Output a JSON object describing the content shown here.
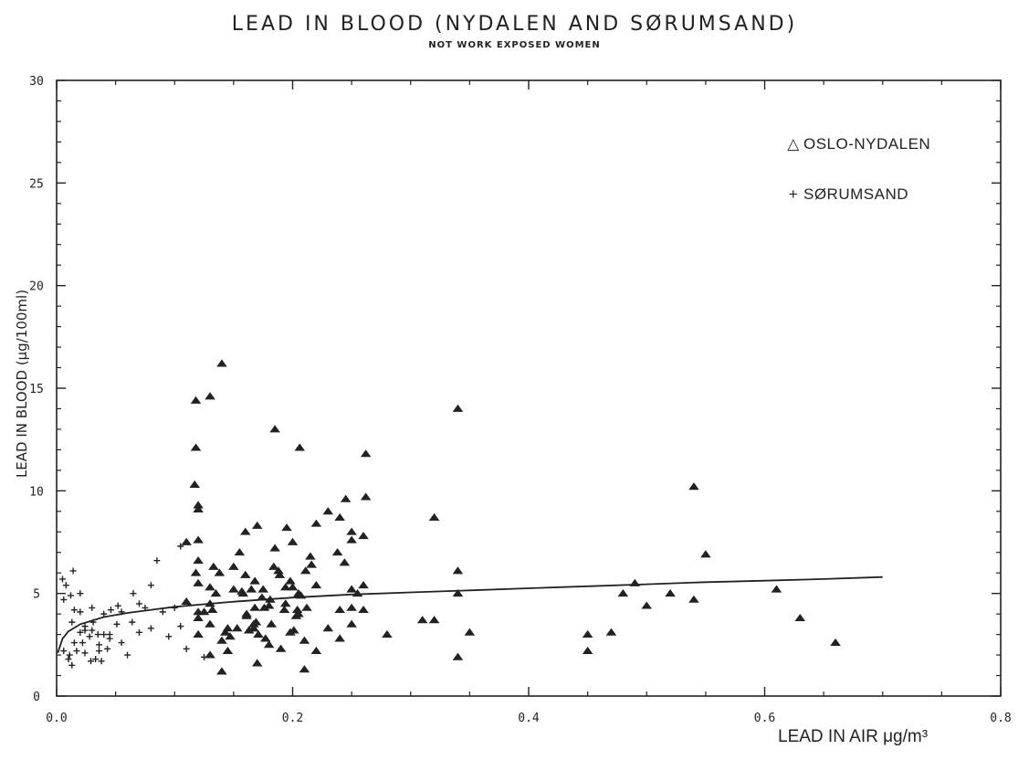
{
  "chart_data": {
    "type": "scatter",
    "title": "LEAD IN BLOOD (NYDALEN AND SØRUMSAND)",
    "subtitle": "NOT WORK EXPOSED WOMEN",
    "xlabel": "LEAD IN AIR μg/m³",
    "ylabel": "LEAD IN BLOOD (μg/100ml)",
    "xlim": [
      0,
      0.8
    ],
    "ylim": [
      0,
      30
    ],
    "xticks": [
      "0.0",
      "0.2",
      "0.4",
      "0.6",
      "0.8"
    ],
    "yticks": [
      "0",
      "5",
      "10",
      "15",
      "20",
      "25",
      "30"
    ],
    "grid": false,
    "legend_position": "top-right",
    "series": [
      {
        "name": "OSLO-NYDALEN",
        "marker": "triangle",
        "points": [
          [
            0.174,
            4.8
          ],
          [
            0.18,
            4.4
          ],
          [
            0.194,
            5.3
          ],
          [
            0.138,
            6.0
          ],
          [
            0.176,
            4.3
          ],
          [
            0.15,
            6.3
          ],
          [
            0.158,
            5.0
          ],
          [
            0.203,
            3.9
          ],
          [
            0.212,
            4.3
          ],
          [
            0.145,
            2.2
          ],
          [
            0.161,
            3.9
          ],
          [
            0.216,
            6.4
          ],
          [
            0.145,
            3.3
          ],
          [
            0.198,
            3.1
          ],
          [
            0.165,
            5.2
          ],
          [
            0.21,
            2.7
          ],
          [
            0.189,
            5.9
          ],
          [
            0.205,
            4.0
          ],
          [
            0.153,
            3.3
          ],
          [
            0.188,
            6.1
          ],
          [
            0.147,
            2.9
          ],
          [
            0.168,
            4.3
          ],
          [
            0.198,
            5.6
          ],
          [
            0.184,
            6.3
          ],
          [
            0.211,
            6.1
          ],
          [
            0.205,
            5.0
          ],
          [
            0.167,
            3.3
          ],
          [
            0.13,
            4.5
          ],
          [
            0.204,
            4.2
          ],
          [
            0.201,
            3.2
          ],
          [
            0.167,
            3.5
          ],
          [
            0.16,
            5.9
          ],
          [
            0.168,
            5.6
          ],
          [
            0.194,
            4.5
          ],
          [
            0.175,
            5.2
          ],
          [
            0.177,
            2.8
          ],
          [
            0.207,
            4.9
          ],
          [
            0.22,
            5.4
          ],
          [
            0.163,
            3.2
          ],
          [
            0.15,
            5.2
          ],
          [
            0.2,
            5.3
          ],
          [
            0.167,
            3.3
          ],
          [
            0.169,
            3.6
          ],
          [
            0.157,
            5.1
          ],
          [
            0.181,
            4.7
          ],
          [
            0.143,
            3.1
          ],
          [
            0.193,
            4.2
          ],
          [
            0.182,
            3.5
          ],
          [
            0.171,
            3.0
          ],
          [
            0.161,
            4.0
          ],
          [
            0.118,
            6.0
          ],
          [
            0.133,
            6.3
          ],
          [
            0.155,
            7.0
          ],
          [
            0.185,
            7.2
          ],
          [
            0.215,
            6.8
          ],
          [
            0.238,
            7.0
          ],
          [
            0.244,
            6.5
          ],
          [
            0.2,
            7.5
          ],
          [
            0.195,
            8.2
          ],
          [
            0.22,
            8.4
          ],
          [
            0.17,
            8.3
          ],
          [
            0.16,
            8.0
          ],
          [
            0.25,
            7.6
          ],
          [
            0.25,
            8.0
          ],
          [
            0.26,
            7.8
          ],
          [
            0.23,
            9.0
          ],
          [
            0.24,
            8.7
          ],
          [
            0.245,
            9.6
          ],
          [
            0.262,
            9.7
          ],
          [
            0.12,
            9.3
          ],
          [
            0.12,
            9.1
          ],
          [
            0.117,
            10.3
          ],
          [
            0.118,
            12.1
          ],
          [
            0.118,
            14.4
          ],
          [
            0.13,
            14.6
          ],
          [
            0.14,
            16.2
          ],
          [
            0.185,
            13.0
          ],
          [
            0.206,
            12.1
          ],
          [
            0.262,
            11.8
          ],
          [
            0.34,
            14.0
          ],
          [
            0.32,
            8.7
          ],
          [
            0.34,
            6.1
          ],
          [
            0.34,
            5.0
          ],
          [
            0.35,
            3.1
          ],
          [
            0.34,
            1.9
          ],
          [
            0.31,
            3.7
          ],
          [
            0.32,
            3.7
          ],
          [
            0.28,
            3.0
          ],
          [
            0.26,
            4.2
          ],
          [
            0.25,
            4.3
          ],
          [
            0.24,
            4.2
          ],
          [
            0.25,
            5.2
          ],
          [
            0.26,
            5.4
          ],
          [
            0.255,
            5.0
          ],
          [
            0.25,
            3.5
          ],
          [
            0.24,
            2.8
          ],
          [
            0.23,
            3.3
          ],
          [
            0.22,
            2.2
          ],
          [
            0.21,
            1.3
          ],
          [
            0.13,
            2.0
          ],
          [
            0.14,
            1.2
          ],
          [
            0.14,
            2.7
          ],
          [
            0.19,
            2.3
          ],
          [
            0.18,
            2.5
          ],
          [
            0.17,
            1.6
          ],
          [
            0.12,
            4.1
          ],
          [
            0.12,
            3.8
          ],
          [
            0.11,
            7.5
          ],
          [
            0.12,
            7.6
          ],
          [
            0.12,
            6.6
          ],
          [
            0.12,
            5.5
          ],
          [
            0.13,
            5.3
          ],
          [
            0.135,
            5.0
          ],
          [
            0.132,
            4.2
          ],
          [
            0.11,
            4.6
          ],
          [
            0.125,
            4.1
          ],
          [
            0.13,
            3.5
          ],
          [
            0.12,
            3.0
          ],
          [
            0.45,
            2.2
          ],
          [
            0.45,
            3.0
          ],
          [
            0.47,
            3.1
          ],
          [
            0.48,
            5.0
          ],
          [
            0.49,
            5.5
          ],
          [
            0.5,
            4.4
          ],
          [
            0.52,
            5.0
          ],
          [
            0.54,
            4.7
          ],
          [
            0.54,
            10.2
          ],
          [
            0.55,
            6.9
          ],
          [
            0.61,
            5.2
          ],
          [
            0.63,
            3.8
          ],
          [
            0.66,
            2.6
          ]
        ]
      },
      {
        "name": "SØRUMSAND",
        "marker": "plus",
        "points": [
          [
            0.005,
            5.7
          ],
          [
            0.008,
            5.4
          ],
          [
            0.006,
            4.7
          ],
          [
            0.012,
            4.9
          ],
          [
            0.014,
            6.1
          ],
          [
            0.015,
            4.2
          ],
          [
            0.013,
            3.6
          ],
          [
            0.02,
            3.1
          ],
          [
            0.024,
            3.2
          ],
          [
            0.028,
            2.9
          ],
          [
            0.015,
            2.6
          ],
          [
            0.011,
            2.0
          ],
          [
            0.017,
            2.2
          ],
          [
            0.024,
            2.1
          ],
          [
            0.029,
            1.7
          ],
          [
            0.013,
            1.5
          ],
          [
            0.038,
            1.7
          ],
          [
            0.033,
            1.8
          ],
          [
            0.036,
            2.2
          ],
          [
            0.043,
            2.3
          ],
          [
            0.045,
            2.8
          ],
          [
            0.045,
            3.0
          ],
          [
            0.04,
            3.0
          ],
          [
            0.035,
            3.0
          ],
          [
            0.03,
            3.2
          ],
          [
            0.024,
            3.4
          ],
          [
            0.046,
            4.2
          ],
          [
            0.052,
            4.4
          ],
          [
            0.055,
            4.1
          ],
          [
            0.065,
            5.0
          ],
          [
            0.07,
            4.5
          ],
          [
            0.075,
            4.3
          ],
          [
            0.08,
            5.4
          ],
          [
            0.085,
            6.6
          ],
          [
            0.09,
            4.1
          ],
          [
            0.1,
            4.3
          ],
          [
            0.08,
            3.3
          ],
          [
            0.07,
            3.1
          ],
          [
            0.095,
            2.9
          ],
          [
            0.105,
            3.4
          ],
          [
            0.11,
            2.3
          ],
          [
            0.125,
            1.9
          ],
          [
            0.105,
            7.3
          ],
          [
            0.006,
            2.2
          ],
          [
            0.01,
            1.8
          ],
          [
            0.022,
            2.6
          ],
          [
            0.031,
            3.6
          ],
          [
            0.051,
            3.5
          ],
          [
            0.055,
            2.6
          ],
          [
            0.06,
            2.0
          ],
          [
            0.064,
            3.6
          ],
          [
            0.02,
            4.1
          ],
          [
            0.03,
            4.3
          ],
          [
            0.04,
            4.0
          ],
          [
            0.02,
            5.0
          ],
          [
            0.036,
            2.5
          ]
        ]
      }
    ],
    "fit_curve": [
      [
        0.001,
        2.1
      ],
      [
        0.005,
        2.8
      ],
      [
        0.01,
        3.15
      ],
      [
        0.02,
        3.5
      ],
      [
        0.04,
        3.85
      ],
      [
        0.06,
        4.05
      ],
      [
        0.08,
        4.2
      ],
      [
        0.1,
        4.35
      ],
      [
        0.15,
        4.6
      ],
      [
        0.2,
        4.8
      ],
      [
        0.25,
        4.95
      ],
      [
        0.3,
        5.05
      ],
      [
        0.35,
        5.15
      ],
      [
        0.4,
        5.25
      ],
      [
        0.45,
        5.35
      ],
      [
        0.5,
        5.45
      ],
      [
        0.55,
        5.55
      ],
      [
        0.6,
        5.62
      ],
      [
        0.65,
        5.7
      ],
      [
        0.7,
        5.8
      ]
    ],
    "legend": [
      {
        "symbol": "△",
        "label": "OSLO-NYDALEN"
      },
      {
        "symbol": "+",
        "label": "SØRUMSAND"
      }
    ]
  }
}
